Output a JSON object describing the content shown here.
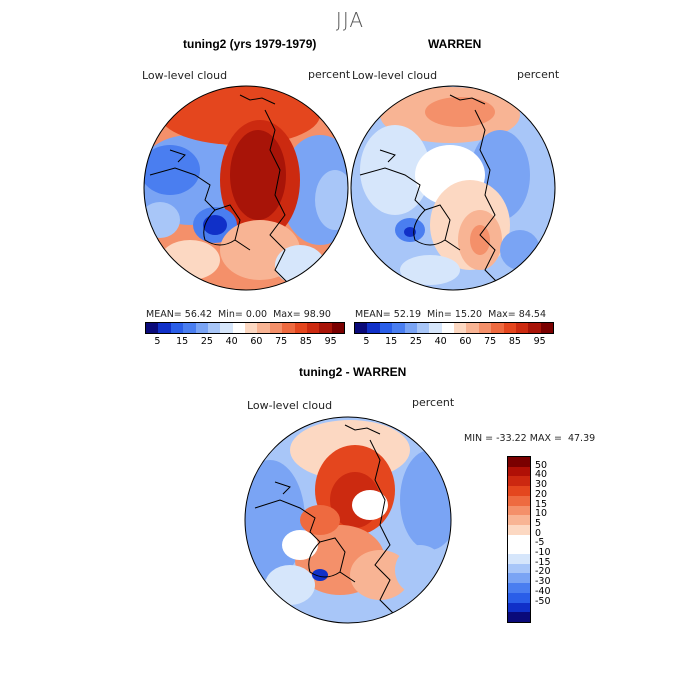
{
  "figure_title": "JJA",
  "panels": {
    "left": {
      "title": "tuning2 (yrs 1979-1979)",
      "variable": "Low-level cloud",
      "units": "percent",
      "stats": {
        "mean_label": "MEAN=",
        "mean": "56.42",
        "min_label": "Min=",
        "min": "0.00",
        "max_label": "Max=",
        "max": "98.90"
      }
    },
    "right": {
      "title": "WARREN",
      "variable": "Low-level cloud",
      "units": "percent",
      "stats": {
        "mean_label": "MEAN=",
        "mean": "52.19",
        "min_label": "Min=",
        "min": "15.20",
        "max_label": "Max=",
        "max": "84.54"
      }
    },
    "diff": {
      "title": "tuning2 - WARREN",
      "variable": "Low-level cloud",
      "units": "percent",
      "range_text": "MIN = -33.22 MAX =  47.39"
    }
  },
  "abs_colorbar": {
    "colors": [
      "#0a0a7a",
      "#1030c8",
      "#2a5ee8",
      "#4a7ef0",
      "#7aa4f4",
      "#a8c6f8",
      "#d6e6fb",
      "#ffffff",
      "#fcd8c2",
      "#f8b494",
      "#f4906a",
      "#ee6a40",
      "#e4461e",
      "#cc2a10",
      "#a81408",
      "#7a0000"
    ],
    "tick_labels": [
      "5",
      "15",
      "25",
      "40",
      "60",
      "75",
      "85",
      "95"
    ]
  },
  "diff_colorbar": {
    "colors": [
      "#7a0000",
      "#b01006",
      "#cc2810",
      "#e4461e",
      "#ee6a40",
      "#f4906a",
      "#f8b494",
      "#fcd8c2",
      "#ffffff",
      "#ffffff",
      "#d6e6fb",
      "#a8c6f8",
      "#7aa4f4",
      "#4a7ef0",
      "#2a5ee8",
      "#1030c8",
      "#0a0a7a"
    ],
    "tick_labels": [
      "50",
      "40",
      "30",
      "20",
      "15",
      "10",
      "5",
      "0",
      "-5",
      "-10",
      "-15",
      "-20",
      "-30",
      "-40",
      "-50"
    ]
  },
  "map_colors": {
    "land_line": "#000000",
    "red_deep": "#a81408",
    "red_mid": "#e4461e",
    "red_light": "#f8b494",
    "blue_light": "#a8c6f8",
    "blue_mid": "#4a7ef0",
    "blue_deep": "#1030c8"
  }
}
